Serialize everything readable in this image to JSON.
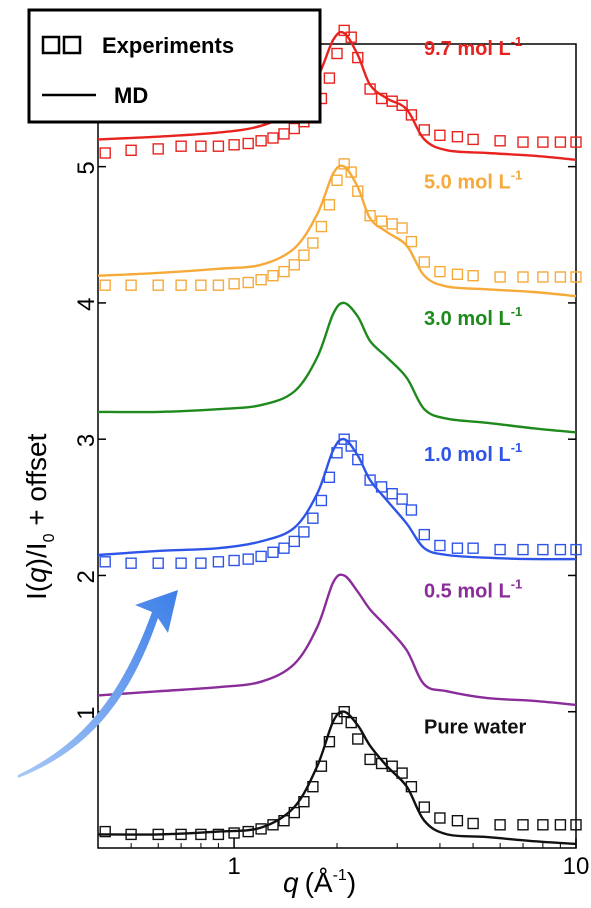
{
  "chart_data": {
    "type": "line",
    "xlabel": {
      "symbol": "q",
      "unit": "(Å",
      "unit_sup": "-1",
      "close": ")"
    },
    "ylabel": {
      "base": "I(",
      "symbol": "q",
      "mid": ")/I",
      "sub": "0",
      "tail": " + offset"
    },
    "x_scale": "log",
    "xlim": [
      0.4,
      10
    ],
    "ylim": [
      0,
      5.9
    ],
    "x_ticks": [
      {
        "value": 1,
        "label": "1"
      },
      {
        "value": 10,
        "label": "10"
      }
    ],
    "y_ticks": [
      {
        "value": 1,
        "label": "1"
      },
      {
        "value": 2,
        "label": "2"
      },
      {
        "value": 3,
        "label": "3"
      },
      {
        "value": 4,
        "label": "4"
      },
      {
        "value": 5,
        "label": "5"
      }
    ],
    "grid": false,
    "legend": {
      "position": "top-left",
      "entries": [
        {
          "marker": "open-square",
          "label": "Experiments"
        },
        {
          "marker": "line",
          "label": "MD"
        }
      ]
    },
    "series": [
      {
        "name": "9.7 mol L",
        "name_sup": "-1",
        "color": "#e8231f",
        "md": {
          "x": [
            0.4,
            0.6,
            0.9,
            1.2,
            1.5,
            1.75,
            1.95,
            2.1,
            2.3,
            2.5,
            2.8,
            3.2,
            3.6,
            4.2,
            5.5,
            7.5,
            10
          ],
          "y": [
            5.2,
            5.22,
            5.25,
            5.3,
            5.42,
            5.65,
            5.93,
            5.98,
            5.82,
            5.6,
            5.5,
            5.42,
            5.2,
            5.12,
            5.1,
            5.08,
            5.05
          ]
        },
        "exp": {
          "x": [
            0.42,
            0.5,
            0.6,
            0.7,
            0.8,
            0.9,
            1.0,
            1.1,
            1.2,
            1.3,
            1.4,
            1.5,
            1.6,
            1.7,
            1.8,
            1.9,
            2.0,
            2.1,
            2.2,
            2.3,
            2.5,
            2.7,
            2.9,
            3.1,
            3.3,
            3.6,
            4.0,
            4.5,
            5.0,
            6.0,
            7.0,
            8.0,
            9.0,
            10.0
          ],
          "y": [
            5.1,
            5.12,
            5.13,
            5.15,
            5.15,
            5.15,
            5.16,
            5.17,
            5.19,
            5.21,
            5.24,
            5.28,
            5.33,
            5.4,
            5.5,
            5.65,
            5.83,
            6.0,
            5.95,
            5.8,
            5.57,
            5.5,
            5.48,
            5.45,
            5.38,
            5.27,
            5.23,
            5.22,
            5.2,
            5.19,
            5.18,
            5.18,
            5.18,
            5.18
          ]
        }
      },
      {
        "name": "5.0 mol L",
        "name_sup": "-1",
        "color": "#f5aa3a",
        "md": {
          "x": [
            0.4,
            0.6,
            0.9,
            1.2,
            1.5,
            1.75,
            1.95,
            2.1,
            2.3,
            2.5,
            2.8,
            3.2,
            3.6,
            4.2,
            5.5,
            7.5,
            10
          ],
          "y": [
            4.2,
            4.22,
            4.25,
            4.28,
            4.4,
            4.65,
            4.95,
            5.0,
            4.85,
            4.62,
            4.52,
            4.42,
            4.2,
            4.12,
            4.1,
            4.08,
            4.05
          ]
        },
        "exp": {
          "x": [
            0.42,
            0.5,
            0.6,
            0.7,
            0.8,
            0.9,
            1.0,
            1.1,
            1.2,
            1.3,
            1.4,
            1.5,
            1.6,
            1.7,
            1.8,
            1.9,
            2.0,
            2.1,
            2.2,
            2.3,
            2.5,
            2.7,
            2.9,
            3.1,
            3.3,
            3.6,
            4.0,
            4.5,
            5.0,
            6.0,
            7.0,
            8.0,
            9.0,
            10.0
          ],
          "y": [
            4.13,
            4.13,
            4.13,
            4.13,
            4.13,
            4.13,
            4.14,
            4.15,
            4.17,
            4.2,
            4.23,
            4.28,
            4.35,
            4.44,
            4.56,
            4.72,
            4.9,
            5.02,
            4.96,
            4.82,
            4.64,
            4.6,
            4.58,
            4.55,
            4.45,
            4.3,
            4.23,
            4.21,
            4.2,
            4.19,
            4.19,
            4.19,
            4.19,
            4.19
          ]
        }
      },
      {
        "name": "3.0 mol L",
        "name_sup": "-1",
        "color": "#1e8a1e",
        "md": {
          "x": [
            0.4,
            0.6,
            0.9,
            1.2,
            1.5,
            1.75,
            1.95,
            2.1,
            2.3,
            2.5,
            2.8,
            3.2,
            3.6,
            4.2,
            5.5,
            7.5,
            10
          ],
          "y": [
            3.2,
            3.2,
            3.22,
            3.25,
            3.35,
            3.6,
            3.92,
            4.0,
            3.9,
            3.72,
            3.6,
            3.45,
            3.22,
            3.15,
            3.12,
            3.08,
            3.05
          ]
        }
      },
      {
        "name": "1.0  mol L",
        "name_sup": "-1",
        "color": "#2f55e8",
        "md": {
          "x": [
            0.4,
            0.6,
            0.9,
            1.2,
            1.5,
            1.75,
            1.95,
            2.1,
            2.3,
            2.5,
            2.8,
            3.2,
            3.6,
            4.2,
            5.5,
            7.5,
            10
          ],
          "y": [
            2.15,
            2.18,
            2.2,
            2.25,
            2.35,
            2.6,
            2.92,
            3.0,
            2.88,
            2.7,
            2.55,
            2.38,
            2.2,
            2.15,
            2.13,
            2.12,
            2.12
          ]
        },
        "exp": {
          "x": [
            0.42,
            0.5,
            0.6,
            0.7,
            0.8,
            0.9,
            1.0,
            1.1,
            1.2,
            1.3,
            1.4,
            1.5,
            1.6,
            1.7,
            1.8,
            1.9,
            2.0,
            2.1,
            2.2,
            2.3,
            2.5,
            2.7,
            2.9,
            3.1,
            3.3,
            3.6,
            4.0,
            4.5,
            5.0,
            6.0,
            7.0,
            8.0,
            9.0,
            10.0
          ],
          "y": [
            2.1,
            2.09,
            2.09,
            2.09,
            2.09,
            2.1,
            2.11,
            2.12,
            2.14,
            2.17,
            2.2,
            2.25,
            2.32,
            2.42,
            2.55,
            2.72,
            2.9,
            3.0,
            2.95,
            2.85,
            2.7,
            2.65,
            2.6,
            2.56,
            2.48,
            2.3,
            2.22,
            2.2,
            2.2,
            2.19,
            2.19,
            2.19,
            2.19,
            2.19
          ]
        }
      },
      {
        "name": "0.5  mol L",
        "name_sup": "-1",
        "color": "#8a2d9a",
        "md": {
          "x": [
            0.4,
            0.6,
            0.9,
            1.2,
            1.5,
            1.75,
            1.95,
            2.1,
            2.3,
            2.5,
            2.8,
            3.2,
            3.6,
            4.2,
            5.5,
            7.5,
            10
          ],
          "y": [
            1.12,
            1.15,
            1.18,
            1.22,
            1.35,
            1.62,
            1.95,
            2.0,
            1.88,
            1.75,
            1.62,
            1.45,
            1.2,
            1.15,
            1.1,
            1.08,
            1.05
          ]
        }
      },
      {
        "name": "Pure water",
        "name_sup": "",
        "color": "#111111",
        "md": {
          "x": [
            0.4,
            0.6,
            0.9,
            1.2,
            1.5,
            1.75,
            1.95,
            2.1,
            2.3,
            2.5,
            2.8,
            3.2,
            3.6,
            4.2,
            5.5,
            7.5,
            10
          ],
          "y": [
            0.1,
            0.1,
            0.12,
            0.15,
            0.3,
            0.6,
            0.93,
            1.0,
            0.9,
            0.75,
            0.6,
            0.45,
            0.2,
            0.1,
            0.08,
            0.05,
            0.03
          ]
        },
        "exp": {
          "x": [
            0.42,
            0.5,
            0.6,
            0.7,
            0.8,
            0.9,
            1.0,
            1.1,
            1.2,
            1.3,
            1.4,
            1.5,
            1.6,
            1.7,
            1.8,
            1.9,
            2.0,
            2.1,
            2.2,
            2.3,
            2.5,
            2.7,
            2.9,
            3.1,
            3.3,
            3.6,
            4.0,
            4.5,
            5.0,
            6.0,
            7.0,
            8.0,
            9.0,
            10.0
          ],
          "y": [
            0.12,
            0.1,
            0.1,
            0.1,
            0.1,
            0.1,
            0.11,
            0.12,
            0.14,
            0.17,
            0.2,
            0.26,
            0.34,
            0.45,
            0.6,
            0.78,
            0.95,
            1.0,
            0.92,
            0.8,
            0.65,
            0.62,
            0.6,
            0.55,
            0.45,
            0.3,
            0.22,
            0.2,
            0.18,
            0.17,
            0.17,
            0.17,
            0.17,
            0.17
          ]
        }
      }
    ]
  },
  "colors": {
    "arrow": "#4a8df0",
    "axis": "#000000"
  }
}
